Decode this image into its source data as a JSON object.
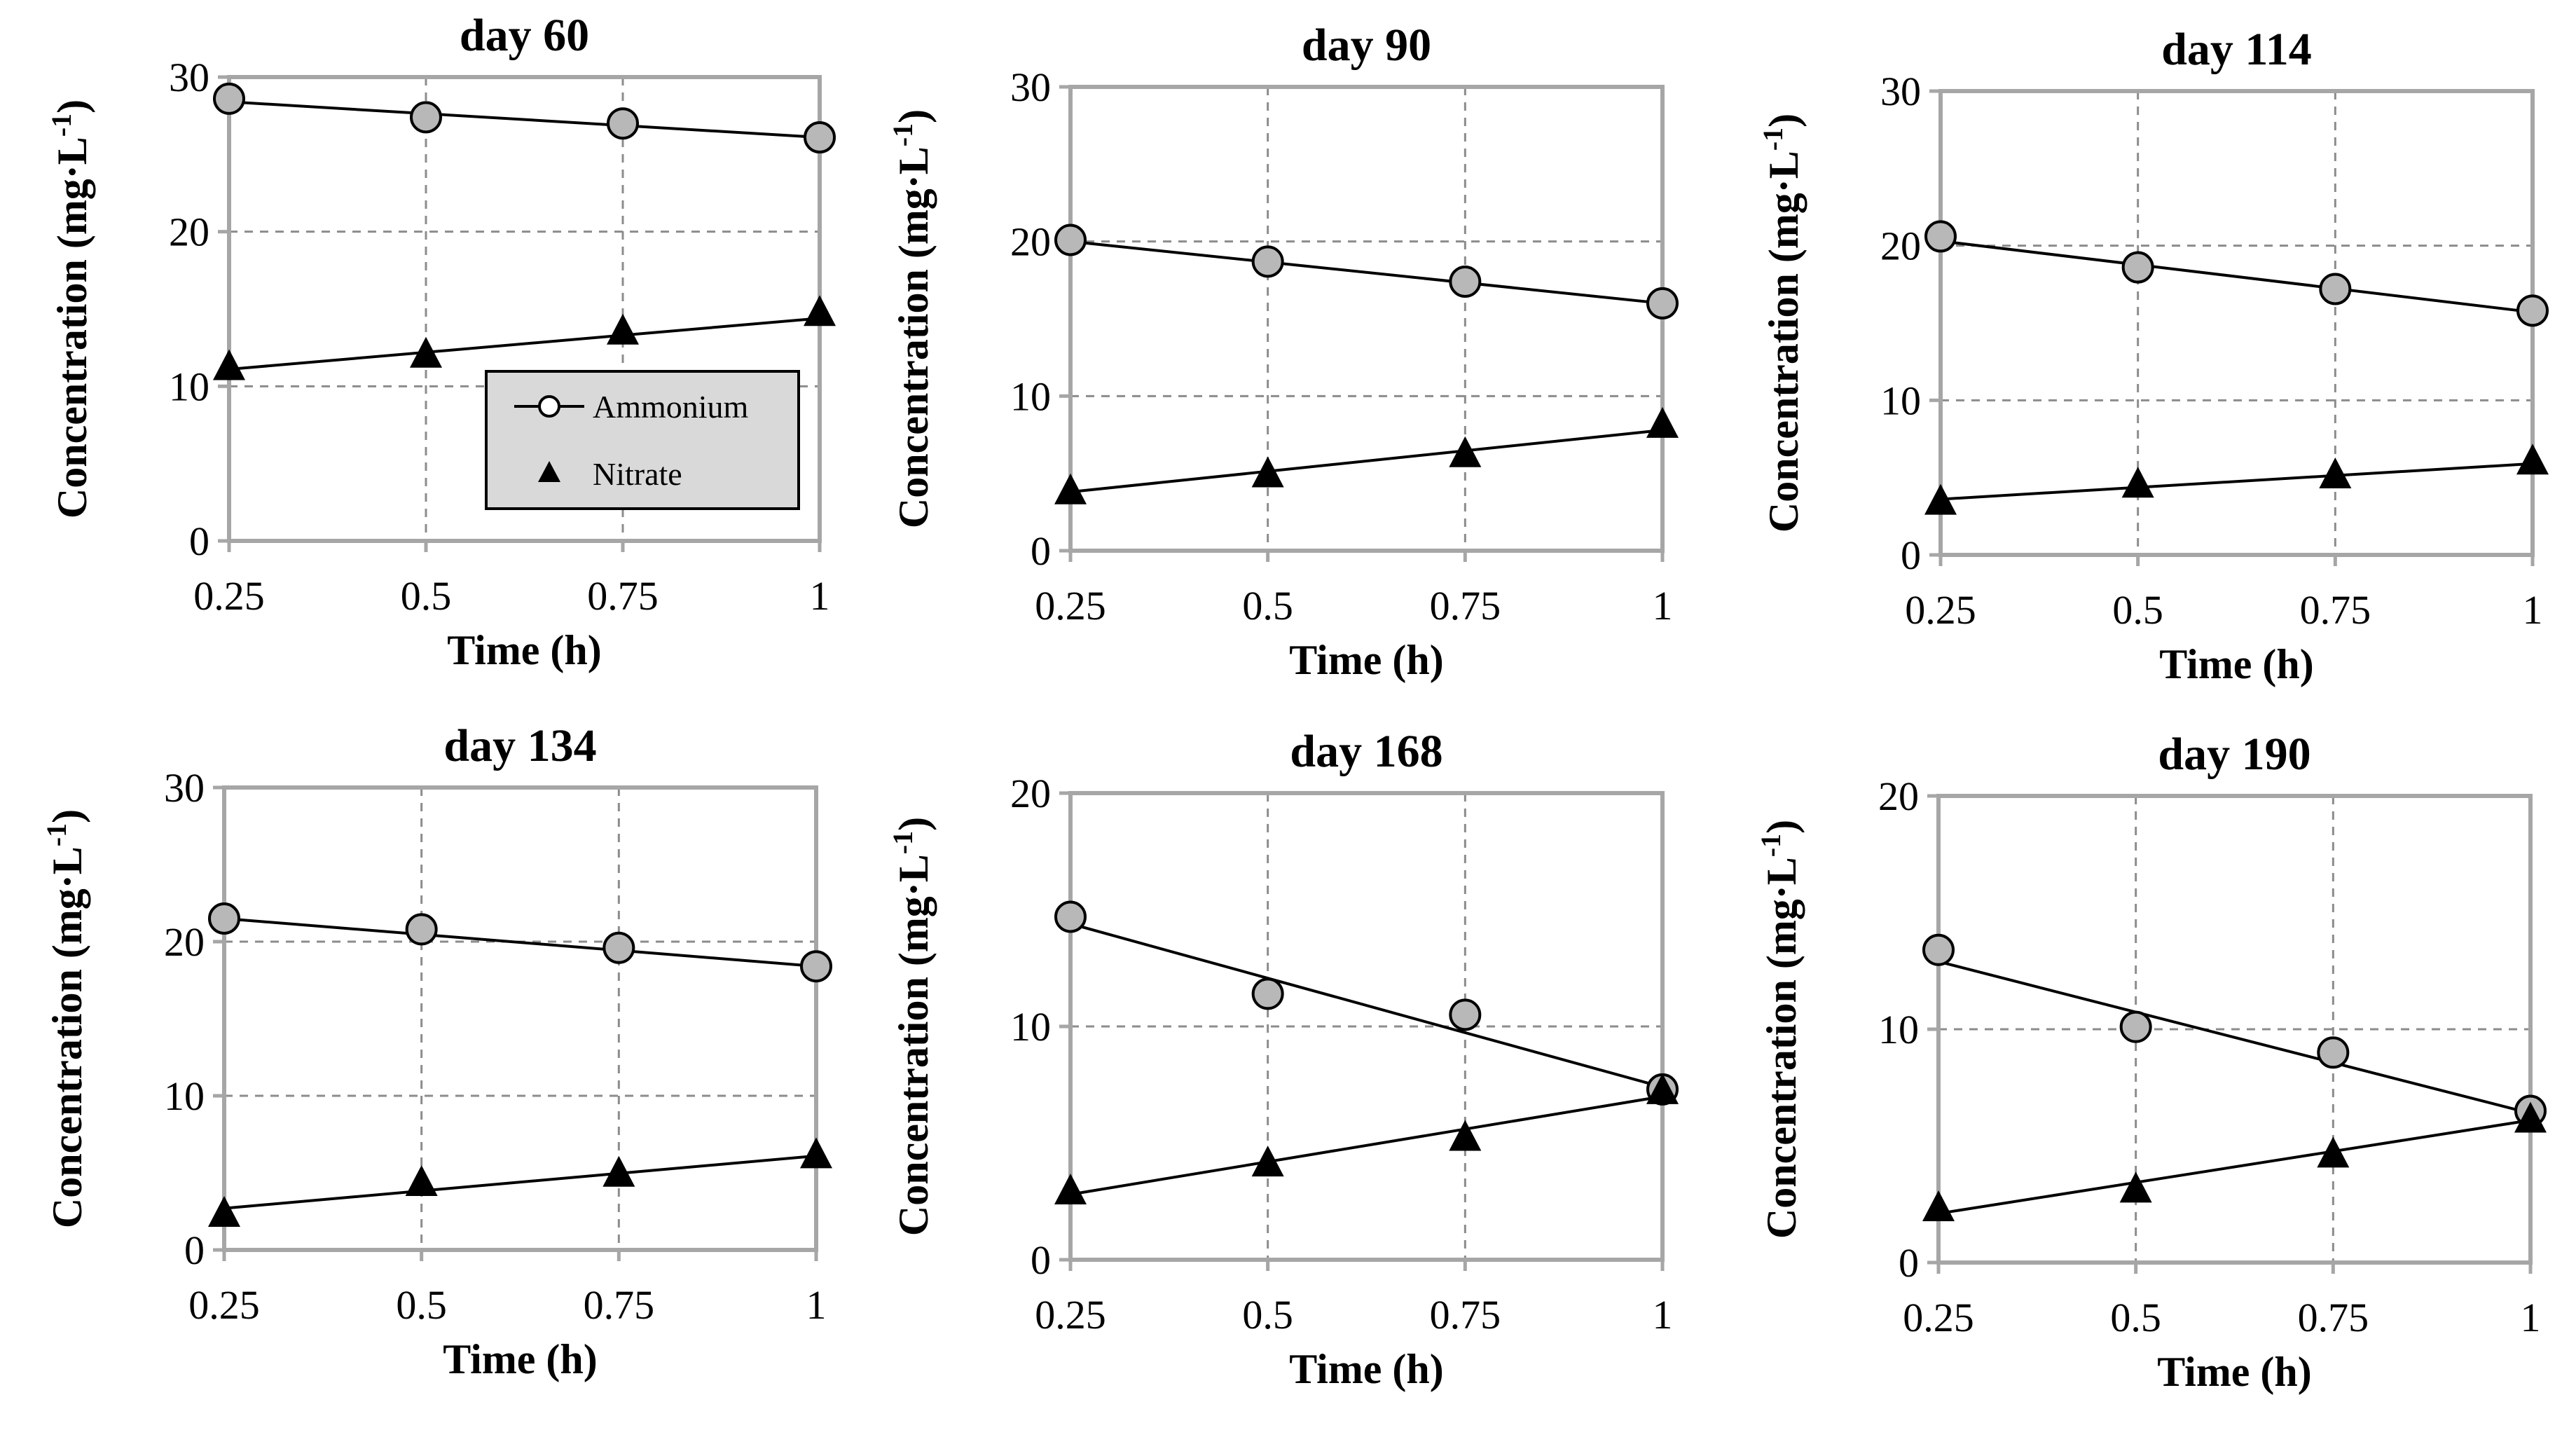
{
  "chart_data": [
    {
      "type": "line",
      "title": "day 60",
      "xlabel": "Time (h)",
      "ylabel": "Concentration (mg·L",
      "ylabel_sup": "-1",
      "ylabel_close": ")",
      "x": [
        0.25,
        0.5,
        0.75,
        1
      ],
      "x_ticks": [
        "0.25",
        "0.5",
        "0.75",
        "1"
      ],
      "ylim": [
        0,
        30
      ],
      "y_ticks": [
        "0",
        "10",
        "20",
        "30"
      ],
      "grid": true,
      "legend": {
        "position": "center-right",
        "entries": [
          "Ammonium",
          "Nitrate"
        ]
      },
      "series": [
        {
          "name": "Ammonium",
          "marker": "circle",
          "values": [
            28.6,
            27.4,
            27.0,
            26.1
          ],
          "fit": [
            28.4,
            26.1
          ]
        },
        {
          "name": "Nitrate",
          "marker": "triangle",
          "values": [
            11.2,
            12.0,
            13.5,
            14.7
          ],
          "fit": [
            11.1,
            14.4
          ]
        }
      ]
    },
    {
      "type": "line",
      "title": "day 90",
      "xlabel": "Time (h)",
      "ylabel": "Concentration (mg·L",
      "ylabel_sup": "-1",
      "ylabel_close": ")",
      "x": [
        0.25,
        0.5,
        0.75,
        1
      ],
      "x_ticks": [
        "0.25",
        "0.5",
        "0.75",
        "1"
      ],
      "ylim": [
        0,
        30
      ],
      "y_ticks": [
        "0",
        "10",
        "20",
        "30"
      ],
      "grid": true,
      "series": [
        {
          "name": "Ammonium",
          "marker": "circle",
          "values": [
            20.1,
            18.7,
            17.4,
            16.0
          ],
          "fit": [
            20.0,
            16.0
          ]
        },
        {
          "name": "Nitrate",
          "marker": "triangle",
          "values": [
            3.8,
            4.9,
            6.2,
            8.1
          ],
          "fit": [
            3.8,
            7.8
          ]
        }
      ]
    },
    {
      "type": "line",
      "title": "day 114",
      "xlabel": "Time (h)",
      "ylabel": "Concentration (mg·L",
      "ylabel_sup": "-1",
      "ylabel_close": ")",
      "x": [
        0.25,
        0.5,
        0.75,
        1
      ],
      "x_ticks": [
        "0.25",
        "0.5",
        "0.75",
        "1"
      ],
      "ylim": [
        0,
        30
      ],
      "y_ticks": [
        "0",
        "10",
        "20",
        "30"
      ],
      "grid": true,
      "series": [
        {
          "name": "Ammonium",
          "marker": "circle",
          "values": [
            20.6,
            18.6,
            17.2,
            15.8
          ],
          "fit": [
            20.3,
            15.7
          ]
        },
        {
          "name": "Nitrate",
          "marker": "triangle",
          "values": [
            3.4,
            4.5,
            5.1,
            6.0
          ],
          "fit": [
            3.6,
            5.9
          ]
        }
      ]
    },
    {
      "type": "line",
      "title": "day 134",
      "xlabel": "Time (h)",
      "ylabel": "Concentration (mg·L",
      "ylabel_sup": "-1",
      "ylabel_close": ")",
      "x": [
        0.25,
        0.5,
        0.75,
        1
      ],
      "x_ticks": [
        "0.25",
        "0.5",
        "0.75",
        "1"
      ],
      "ylim": [
        0,
        30
      ],
      "y_ticks": [
        "0",
        "10",
        "20",
        "30"
      ],
      "grid": true,
      "series": [
        {
          "name": "Ammonium",
          "marker": "circle",
          "values": [
            21.5,
            20.8,
            19.6,
            18.4
          ],
          "fit": [
            21.5,
            18.4
          ]
        },
        {
          "name": "Nitrate",
          "marker": "triangle",
          "values": [
            2.3,
            4.3,
            4.9,
            6.1
          ],
          "fit": [
            2.7,
            6.1
          ]
        }
      ]
    },
    {
      "type": "line",
      "title": "day 168",
      "xlabel": "Time (h)",
      "ylabel": "Concentration (mg·L",
      "ylabel_sup": "-1",
      "ylabel_close": ")",
      "x": [
        0.25,
        0.5,
        0.75,
        1
      ],
      "x_ticks": [
        "0.25",
        "0.5",
        "0.75",
        "1"
      ],
      "ylim": [
        0,
        20
      ],
      "y_ticks": [
        "0",
        "10",
        "20"
      ],
      "grid": true,
      "series": [
        {
          "name": "Ammonium",
          "marker": "circle",
          "values": [
            14.7,
            11.4,
            10.5,
            7.3
          ],
          "fit": [
            14.4,
            7.4
          ]
        },
        {
          "name": "Nitrate",
          "marker": "triangle",
          "values": [
            2.9,
            4.1,
            5.2,
            7.2
          ],
          "fit": [
            2.8,
            7.0
          ]
        }
      ]
    },
    {
      "type": "line",
      "title": "day 190",
      "xlabel": "Time (h)",
      "ylabel": "Concentration (mg·L",
      "ylabel_sup": "-1",
      "ylabel_close": ")",
      "x": [
        0.25,
        0.5,
        0.75,
        1
      ],
      "x_ticks": [
        "0.25",
        "0.5",
        "0.75",
        "1"
      ],
      "ylim": [
        0,
        20
      ],
      "y_ticks": [
        "0",
        "10",
        "20"
      ],
      "grid": true,
      "series": [
        {
          "name": "Ammonium",
          "marker": "circle",
          "values": [
            13.4,
            10.1,
            9.0,
            6.5
          ],
          "fit": [
            12.9,
            6.4
          ]
        },
        {
          "name": "Nitrate",
          "marker": "triangle",
          "values": [
            2.3,
            3.1,
            4.6,
            6.1
          ],
          "fit": [
            2.1,
            6.1
          ]
        }
      ]
    }
  ]
}
